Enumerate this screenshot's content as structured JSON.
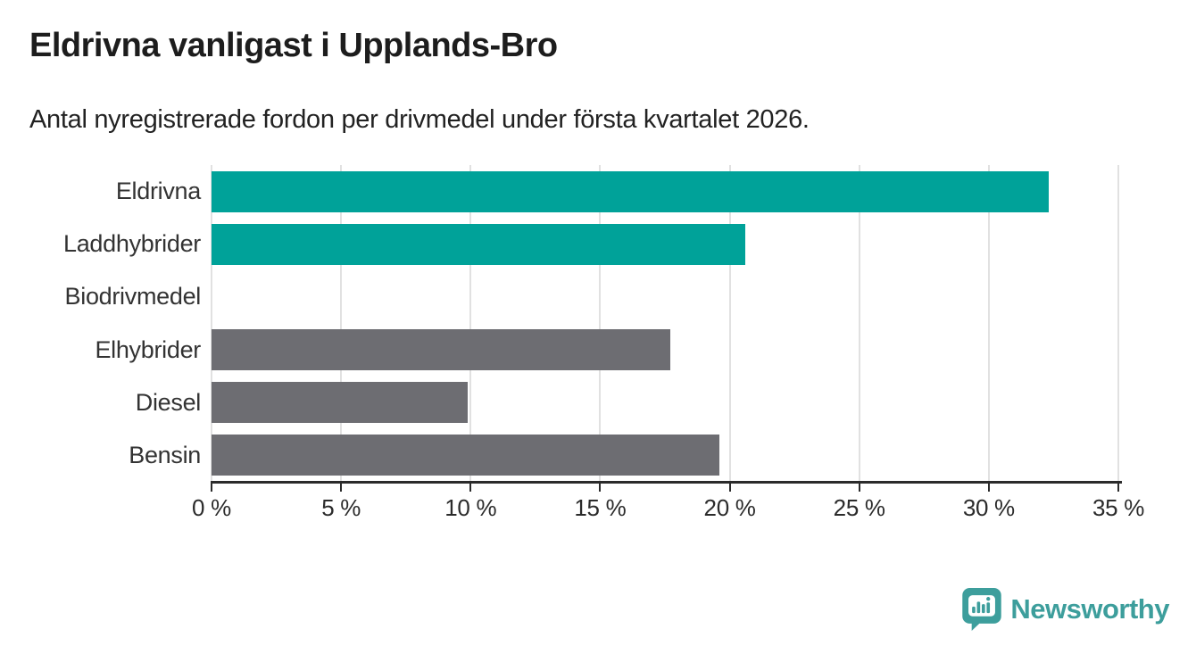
{
  "header": {
    "title": "Eldrivna vanligast i Upplands-Bro",
    "subtitle": "Antal nyregistrerade fordon per drivmedel under första kvartalet 2026."
  },
  "chart_data": {
    "type": "bar",
    "orientation": "horizontal",
    "title": "Eldrivna vanligast i Upplands-Bro",
    "subtitle": "Antal nyregistrerade fordon per drivmedel under första kvartalet 2026.",
    "categories": [
      "Eldrivna",
      "Laddhybrider",
      "Biodrivmedel",
      "Elhybrider",
      "Diesel",
      "Bensin"
    ],
    "values": [
      32.3,
      20.6,
      0,
      17.7,
      9.9,
      19.6
    ],
    "unit": "%",
    "bar_colors": [
      "#00a299",
      "#00a299",
      "#6d6d72",
      "#6d6d72",
      "#6d6d72",
      "#6d6d72"
    ],
    "xlabel": "",
    "ylabel": "",
    "xlim": [
      0,
      35
    ],
    "xticks": [
      0,
      5,
      10,
      15,
      20,
      25,
      30,
      35
    ],
    "xtick_labels": [
      "0 %",
      "5 %",
      "10 %",
      "15 %",
      "20 %",
      "25 %",
      "30 %",
      "35 %"
    ],
    "grid": true,
    "legend": false
  },
  "colors": {
    "bar_teal": "#00a299",
    "bar_gray": "#6d6d72",
    "gridline": "#e1e1e1",
    "axis": "#2b2b2b",
    "label_text": "#333333",
    "logo_teal": "#3d9e9c"
  },
  "footer": {
    "logo_text": "Newsworthy"
  }
}
